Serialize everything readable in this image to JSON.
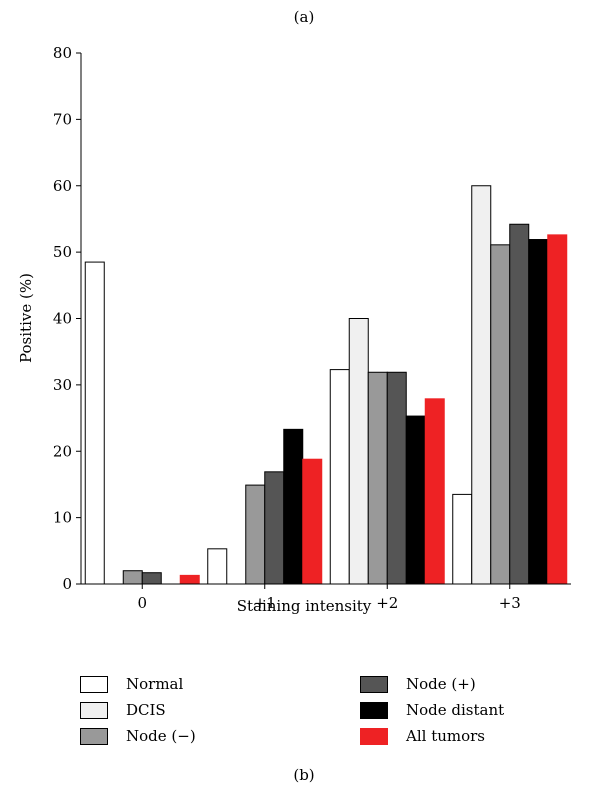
{
  "captions": {
    "top": "(a)",
    "bottom": "(b)"
  },
  "chart_data": {
    "type": "bar",
    "xlabel": "Staining intensity",
    "ylabel": "Positive (%)",
    "ylim": [
      0,
      80
    ],
    "yticks": [
      0,
      10,
      20,
      30,
      40,
      50,
      60,
      70,
      80
    ],
    "categories": [
      "0",
      "+1",
      "+2",
      "+3"
    ],
    "legend_position": "bottom",
    "series": [
      {
        "name": "Normal",
        "color": "#ffffff",
        "values": [
          48.5,
          5.3,
          32.3,
          13.5
        ]
      },
      {
        "name": "DCIS",
        "color": "#f0f0f0",
        "values": [
          0,
          0,
          40.0,
          60.0
        ]
      },
      {
        "name": "Node (−)",
        "color": "#999999",
        "values": [
          2.0,
          14.9,
          31.9,
          51.1
        ]
      },
      {
        "name": "Node (+)",
        "color": "#555555",
        "values": [
          1.7,
          16.9,
          31.9,
          54.2
        ]
      },
      {
        "name": "Node distant",
        "color": "#000000",
        "values": [
          0,
          23.3,
          25.3,
          51.9
        ]
      },
      {
        "name": "All tumors",
        "color": "#ee2224",
        "values": [
          1.3,
          18.8,
          27.9,
          52.6
        ]
      }
    ]
  }
}
